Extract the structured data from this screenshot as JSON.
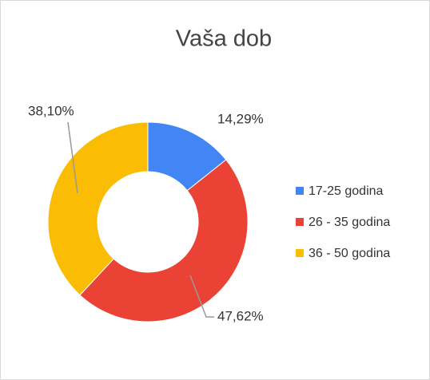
{
  "chart_data": {
    "type": "donut",
    "title": "Vaša dob",
    "categories": [
      "17-25 godina",
      "26 - 35 godina",
      "36 - 50 godina"
    ],
    "values": [
      14.29,
      47.62,
      38.1
    ],
    "value_labels": [
      "14,29%",
      "47,62%",
      "38,10%"
    ],
    "colors": [
      "#4285f4",
      "#ea4335",
      "#fbbc04"
    ],
    "legend": "right"
  }
}
